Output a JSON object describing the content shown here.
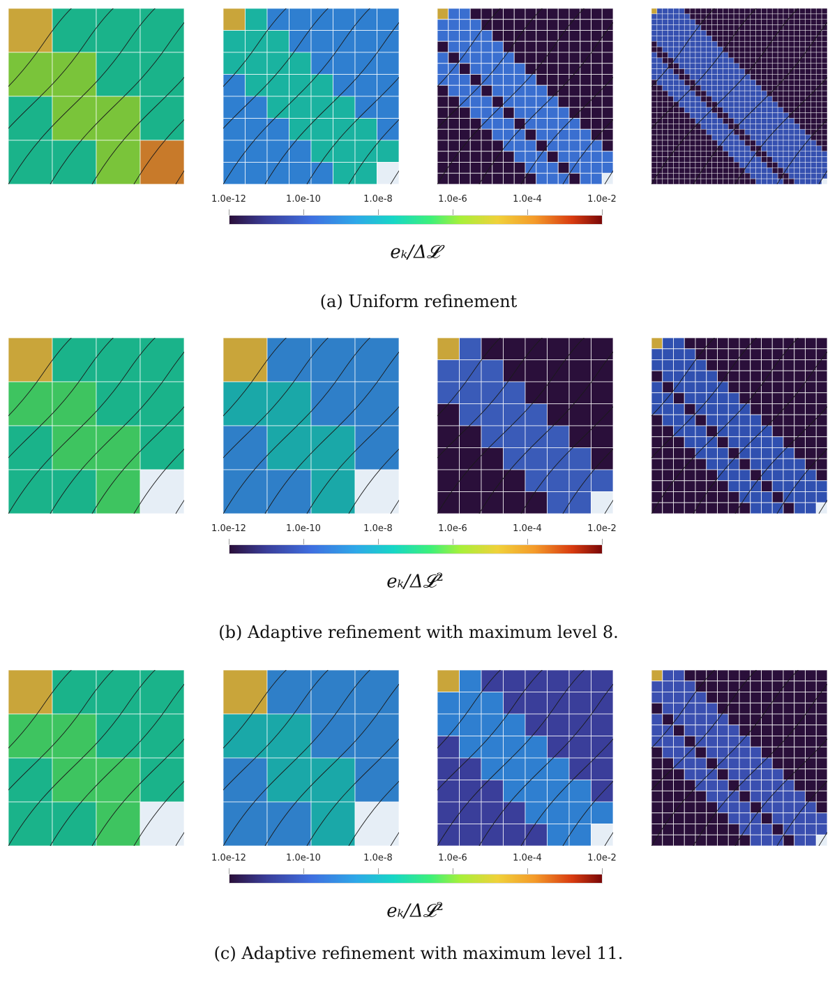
{
  "figure": {
    "colorbar": {
      "tick_labels": [
        "1.0e-12",
        "1.0e-10",
        "1.0e-8",
        "1.0e-6",
        "1.0e-4",
        "1.0e-2"
      ],
      "colors": [
        "#2b0f3a",
        "#3a3e9a",
        "#3f6fe0",
        "#2ea8e8",
        "#17d6c6",
        "#3df07a",
        "#a7f03a",
        "#f0d13a",
        "#f49a2a",
        "#d83b10",
        "#7a0808"
      ]
    },
    "rows": [
      {
        "id": "a",
        "caption": "(a) Uniform refinement",
        "colorbar_label": "eₖ/Δ𝓛",
        "colorbar_label_sup": "",
        "panels": [
          {
            "name": "uniform-level-2",
            "grid": 4,
            "base": "#1ab38a",
            "accent": "#7ac43a"
          },
          {
            "name": "uniform-level-3",
            "grid": 8,
            "base": "#2f7fd0",
            "accent": "#1ab3a0"
          },
          {
            "name": "uniform-level-4",
            "grid": 16,
            "base": "#2a0f3a",
            "accent": "#3a6fd0"
          },
          {
            "name": "uniform-level-5",
            "grid": 32,
            "base": "#2a0f3a",
            "accent": "#3550b0"
          }
        ]
      },
      {
        "id": "b",
        "caption": "(b) Adaptive refinement with maximum level 8.",
        "colorbar_label": "eₖ/Δ𝓛",
        "colorbar_label_sup": "2",
        "panels": [
          {
            "name": "adaptive8-level-2",
            "grid": 4,
            "base": "#1ab38a",
            "accent": "#3ec460"
          },
          {
            "name": "adaptive8-level-3",
            "grid": 4,
            "base": "#2f7fc8",
            "accent": "#1aa8a8"
          },
          {
            "name": "adaptive8-level-4",
            "grid": 8,
            "base": "#2a0f3a",
            "accent": "#3a5bb8"
          },
          {
            "name": "adaptive8-level-5",
            "grid": 16,
            "base": "#2a0f3a",
            "accent": "#3050b0"
          }
        ]
      },
      {
        "id": "c",
        "caption": "(c) Adaptive refinement with maximum level 11.",
        "colorbar_label": "eₖ/Δ𝓛",
        "colorbar_label_sup": "2",
        "panels": [
          {
            "name": "adaptive11-level-2",
            "grid": 4,
            "base": "#1ab38a",
            "accent": "#3ec460"
          },
          {
            "name": "adaptive11-level-3",
            "grid": 4,
            "base": "#2f7fc8",
            "accent": "#1aa8a8"
          },
          {
            "name": "adaptive11-level-4",
            "grid": 8,
            "base": "#3a3e9a",
            "accent": "#2f7fd0"
          },
          {
            "name": "adaptive11-level-5",
            "grid": 16,
            "base": "#2a0f3a",
            "accent": "#3a4fb0"
          }
        ]
      }
    ]
  }
}
